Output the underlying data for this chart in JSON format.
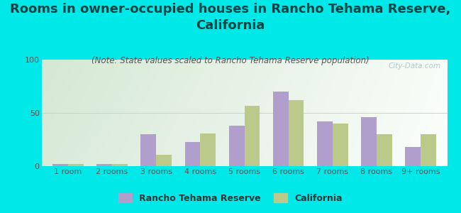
{
  "title": "Rooms in owner-occupied houses in Rancho Tehama Reserve,\nCalifornia",
  "subtitle": "(Note: State values scaled to Rancho Tehama Reserve population)",
  "categories": [
    "1 room",
    "2 rooms",
    "3 rooms",
    "4 rooms",
    "5 rooms",
    "6 rooms",
    "7 rooms",
    "8 rooms",
    "9+ rooms"
  ],
  "rancho_values": [
    2,
    2,
    30,
    23,
    38,
    70,
    42,
    46,
    18
  ],
  "california_values": [
    2,
    2,
    11,
    31,
    57,
    62,
    40,
    30,
    30
  ],
  "rancho_color": "#b09fcc",
  "california_color": "#bbc98a",
  "background_outer": "#00e8e8",
  "yticks": [
    0,
    50,
    100
  ],
  "ylim": [
    0,
    100
  ],
  "bar_width": 0.35,
  "title_fontsize": 13,
  "subtitle_fontsize": 8.5,
  "tick_fontsize": 8,
  "legend_fontsize": 9,
  "watermark_text": "City-Data.com",
  "watermark_color": "#aacccc",
  "title_color": "#004444",
  "subtitle_color": "#555555",
  "tick_color": "#555555",
  "legend_labels": [
    "Rancho Tehama Reserve",
    "California"
  ],
  "legend_color": "#333333"
}
